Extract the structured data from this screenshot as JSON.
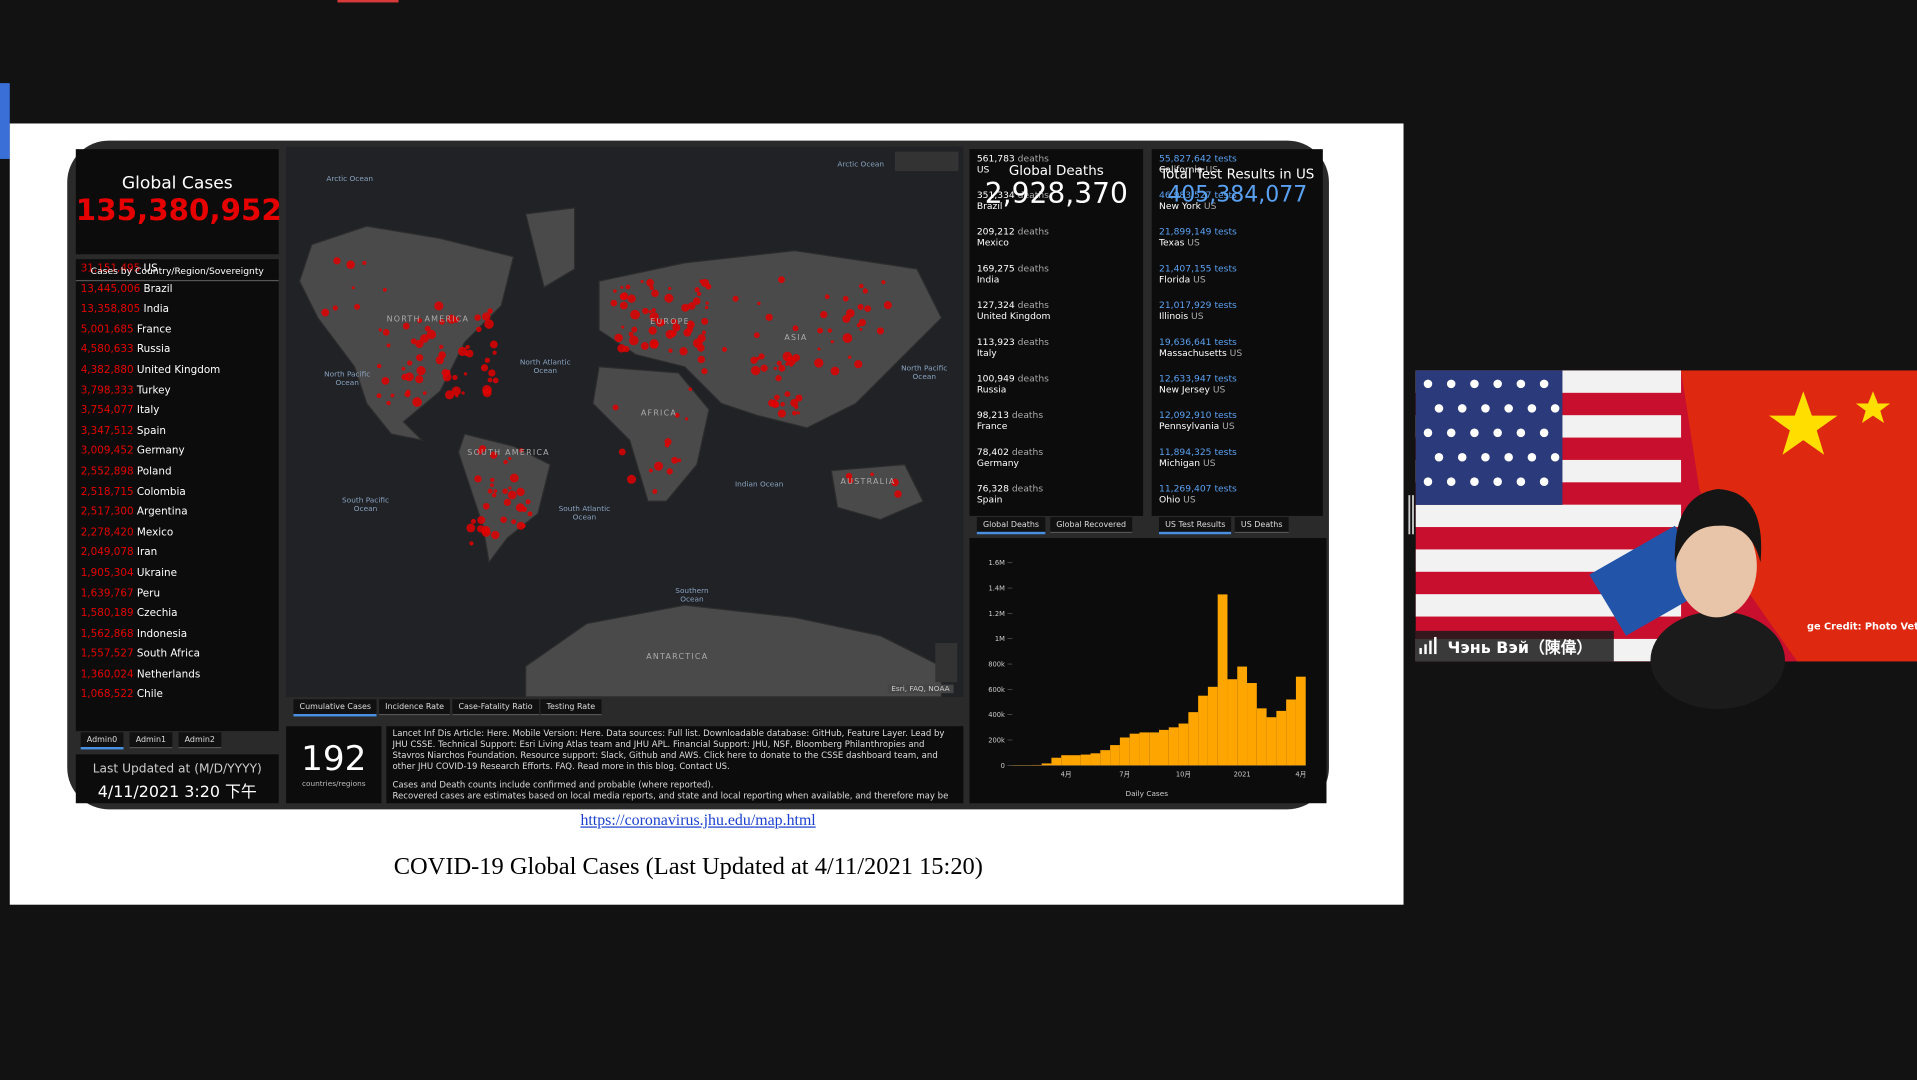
{
  "dashboard": {
    "global_cases": {
      "title": "Global Cases",
      "value": "135,380,952"
    },
    "country_list": {
      "header": "Cases by Country/Region/Sovereignty",
      "rows": [
        {
          "cases": "31,151,495",
          "name": "US"
        },
        {
          "cases": "13,445,006",
          "name": "Brazil"
        },
        {
          "cases": "13,358,805",
          "name": "India"
        },
        {
          "cases": "5,001,685",
          "name": "France"
        },
        {
          "cases": "4,580,633",
          "name": "Russia"
        },
        {
          "cases": "4,382,880",
          "name": "United Kingdom"
        },
        {
          "cases": "3,798,333",
          "name": "Turkey"
        },
        {
          "cases": "3,754,077",
          "name": "Italy"
        },
        {
          "cases": "3,347,512",
          "name": "Spain"
        },
        {
          "cases": "3,009,452",
          "name": "Germany"
        },
        {
          "cases": "2,552,898",
          "name": "Poland"
        },
        {
          "cases": "2,518,715",
          "name": "Colombia"
        },
        {
          "cases": "2,517,300",
          "name": "Argentina"
        },
        {
          "cases": "2,278,420",
          "name": "Mexico"
        },
        {
          "cases": "2,049,078",
          "name": "Iran"
        },
        {
          "cases": "1,905,304",
          "name": "Ukraine"
        },
        {
          "cases": "1,639,767",
          "name": "Peru"
        },
        {
          "cases": "1,580,189",
          "name": "Czechia"
        },
        {
          "cases": "1,562,868",
          "name": "Indonesia"
        },
        {
          "cases": "1,557,527",
          "name": "South Africa"
        },
        {
          "cases": "1,360,024",
          "name": "Netherlands"
        },
        {
          "cases": "1,068,522",
          "name": "Chile"
        }
      ]
    },
    "admin_tabs": [
      "Admin0",
      "Admin1",
      "Admin2"
    ],
    "last_updated": {
      "label": "Last Updated at (M/D/YYYY)",
      "value": "4/11/2021 3:20 下午"
    },
    "map": {
      "labels": [
        "Arctic Ocean",
        "Arctic Ocean",
        "North Pacific Ocean",
        "NORTH AMERICA",
        "North Atlantic Ocean",
        "EUROPE",
        "ASIA",
        "North Pacific Ocean",
        "AFRICA",
        "SOUTH AMERICA",
        "South Pacific Ocean",
        "South Atlantic Ocean",
        "Indian Ocean",
        "AUSTRALIA",
        "Southern Ocean",
        "ANTARCTICA"
      ],
      "attribution": "Esri, FAQ, NOAA",
      "tabs": [
        "Cumulative Cases",
        "Incidence Rate",
        "Case-Fatality Ratio",
        "Testing Rate"
      ]
    },
    "count": {
      "value": "192",
      "label": "countries/regions"
    },
    "info": {
      "paragraphs": [
        "Lancet Inf Dis Article: Here. Mobile Version: Here. Data sources: Full list. Downloadable database: GitHub, Feature Layer. Lead by JHU CSSE. Technical Support: Esri Living Atlas team and JHU APL. Financial Support: JHU, NSF, Bloomberg Philanthropies and Stavros Niarchos Foundation. Resource support: Slack, Github and AWS. Click here to donate to the CSSE dashboard team, and other JHU COVID-19 Research Efforts. FAQ. Read more in this blog. Contact US.",
        "Cases and Death counts include confirmed and probable (where reported).",
        "Recovered cases are estimates based on local media reports, and state and local reporting when available, and therefore may be"
      ]
    },
    "deaths": {
      "title": "Global Deaths",
      "value": "2,928,370",
      "rows": [
        {
          "count": "561,783",
          "unit": "deaths",
          "place": "US"
        },
        {
          "count": "351,334",
          "unit": "deaths",
          "place": "Brazil"
        },
        {
          "count": "209,212",
          "unit": "deaths",
          "place": "Mexico"
        },
        {
          "count": "169,275",
          "unit": "deaths",
          "place": "India"
        },
        {
          "count": "127,324",
          "unit": "deaths",
          "place": "United Kingdom"
        },
        {
          "count": "113,923",
          "unit": "deaths",
          "place": "Italy"
        },
        {
          "count": "100,949",
          "unit": "deaths",
          "place": "Russia"
        },
        {
          "count": "98,213",
          "unit": "deaths",
          "place": "France"
        },
        {
          "count": "78,402",
          "unit": "deaths",
          "place": "Germany"
        },
        {
          "count": "76,328",
          "unit": "deaths",
          "place": "Spain"
        }
      ],
      "tabs": [
        "Global Deaths",
        "Global Recovered"
      ]
    },
    "tests": {
      "title": "Total Test Results in US",
      "value": "405,384,077",
      "rows": [
        {
          "count": "55,827,642",
          "unit": "tests",
          "place": "California",
          "country": "US"
        },
        {
          "count": "46,983,527",
          "unit": "tests",
          "place": "New York",
          "country": "US"
        },
        {
          "count": "21,899,149",
          "unit": "tests",
          "place": "Texas",
          "country": "US"
        },
        {
          "count": "21,407,155",
          "unit": "tests",
          "place": "Florida",
          "country": "US"
        },
        {
          "count": "21,017,929",
          "unit": "tests",
          "place": "Illinois",
          "country": "US"
        },
        {
          "count": "19,636,641",
          "unit": "tests",
          "place": "Massachusetts",
          "country": "US"
        },
        {
          "count": "12,633,947",
          "unit": "tests",
          "place": "New Jersey",
          "country": "US"
        },
        {
          "count": "12,092,910",
          "unit": "tests",
          "place": "Pennsylvania",
          "country": "US"
        },
        {
          "count": "11,894,325",
          "unit": "tests",
          "place": "Michigan",
          "country": "US"
        },
        {
          "count": "11,269,407",
          "unit": "tests",
          "place": "Ohio",
          "country": "US"
        }
      ],
      "tabs": [
        "US Test Results",
        "US Deaths"
      ]
    }
  },
  "chart_data": {
    "type": "bar",
    "x_label": "Daily Cases",
    "color": "#ffa500",
    "grid": false,
    "categories": [
      null,
      null,
      null,
      null,
      null,
      "4月",
      null,
      null,
      null,
      null,
      null,
      "7月",
      null,
      null,
      null,
      null,
      null,
      "10月",
      null,
      null,
      null,
      null,
      null,
      "2021",
      null,
      null,
      null,
      null,
      null,
      "4月"
    ],
    "values": [
      2000,
      2000,
      3000,
      15000,
      60000,
      80000,
      80000,
      85000,
      95000,
      120000,
      160000,
      220000,
      250000,
      260000,
      260000,
      280000,
      300000,
      330000,
      420000,
      550000,
      620000,
      1350000,
      680000,
      780000,
      650000,
      450000,
      380000,
      430000,
      520000,
      700000
    ],
    "ylim": [
      0,
      1680000
    ],
    "yticks": [
      0,
      {
        "value": 200000,
        "label": "200k"
      },
      {
        "value": 400000,
        "label": "400k"
      },
      {
        "value": 600000,
        "label": "600k"
      },
      {
        "value": 800000,
        "label": "800k"
      },
      {
        "value": 1000000,
        "label": "1M"
      },
      {
        "value": 1200000,
        "label": "1.2M"
      },
      {
        "value": 1400000,
        "label": "1.4M"
      },
      {
        "value": 1600000,
        "label": "1.6M"
      }
    ]
  },
  "slide": {
    "link": "https://coronavirus.jhu.edu/map.html",
    "caption": "COVID-19 Global Cases (Last Updated at 4/11/2021 15:20)"
  },
  "video": {
    "name": "Чэнь Вэй（陳偉）",
    "credit": "ge Credit: Photo Veterok"
  }
}
